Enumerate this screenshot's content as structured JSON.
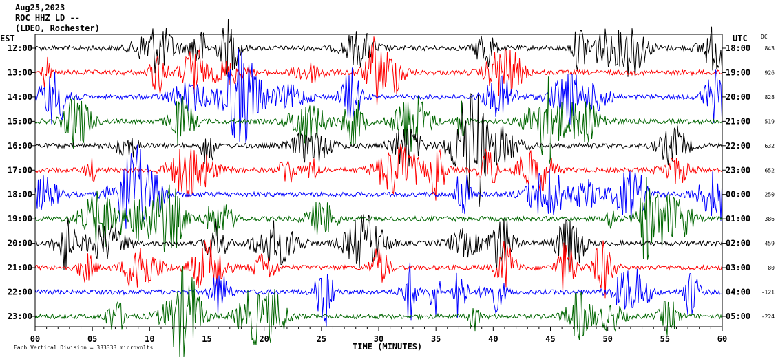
{
  "header": {
    "date": "Aug25,2023",
    "station": "ROC HHZ LD --",
    "location": "(LDEO, Rochester)"
  },
  "chart_data": {
    "type": "line",
    "title": "",
    "left_axis_title": "EST",
    "right_axis_title": "UTC",
    "dc_title": "DC",
    "xlabel": "TIME (MINUTES)",
    "xlim": [
      0,
      60
    ],
    "x_ticks": [
      "00",
      "05",
      "10",
      "15",
      "20",
      "25",
      "30",
      "35",
      "40",
      "45",
      "50",
      "55",
      "60"
    ],
    "footnote": "Each Vertical Division = 333333 microvolts",
    "grid": false,
    "colors": [
      "#000000",
      "#ff0000",
      "#0000ff",
      "#006600"
    ],
    "rows": [
      {
        "est": "12:00",
        "utc": "18:00",
        "dc": "843"
      },
      {
        "est": "13:00",
        "utc": "19:00",
        "dc": "926"
      },
      {
        "est": "14:00",
        "utc": "20:00",
        "dc": "828"
      },
      {
        "est": "15:00",
        "utc": "21:00",
        "dc": "519"
      },
      {
        "est": "16:00",
        "utc": "22:00",
        "dc": "632"
      },
      {
        "est": "17:00",
        "utc": "23:00",
        "dc": "652"
      },
      {
        "est": "18:00",
        "utc": "00:00",
        "dc": "250"
      },
      {
        "est": "19:00",
        "utc": "01:00",
        "dc": "386"
      },
      {
        "est": "20:00",
        "utc": "02:00",
        "dc": "459"
      },
      {
        "est": "21:00",
        "utc": "03:00",
        "dc": "80"
      },
      {
        "est": "22:00",
        "utc": "04:00",
        "dc": "-121"
      },
      {
        "est": "23:00",
        "utc": "05:00",
        "dc": "-224"
      }
    ]
  }
}
